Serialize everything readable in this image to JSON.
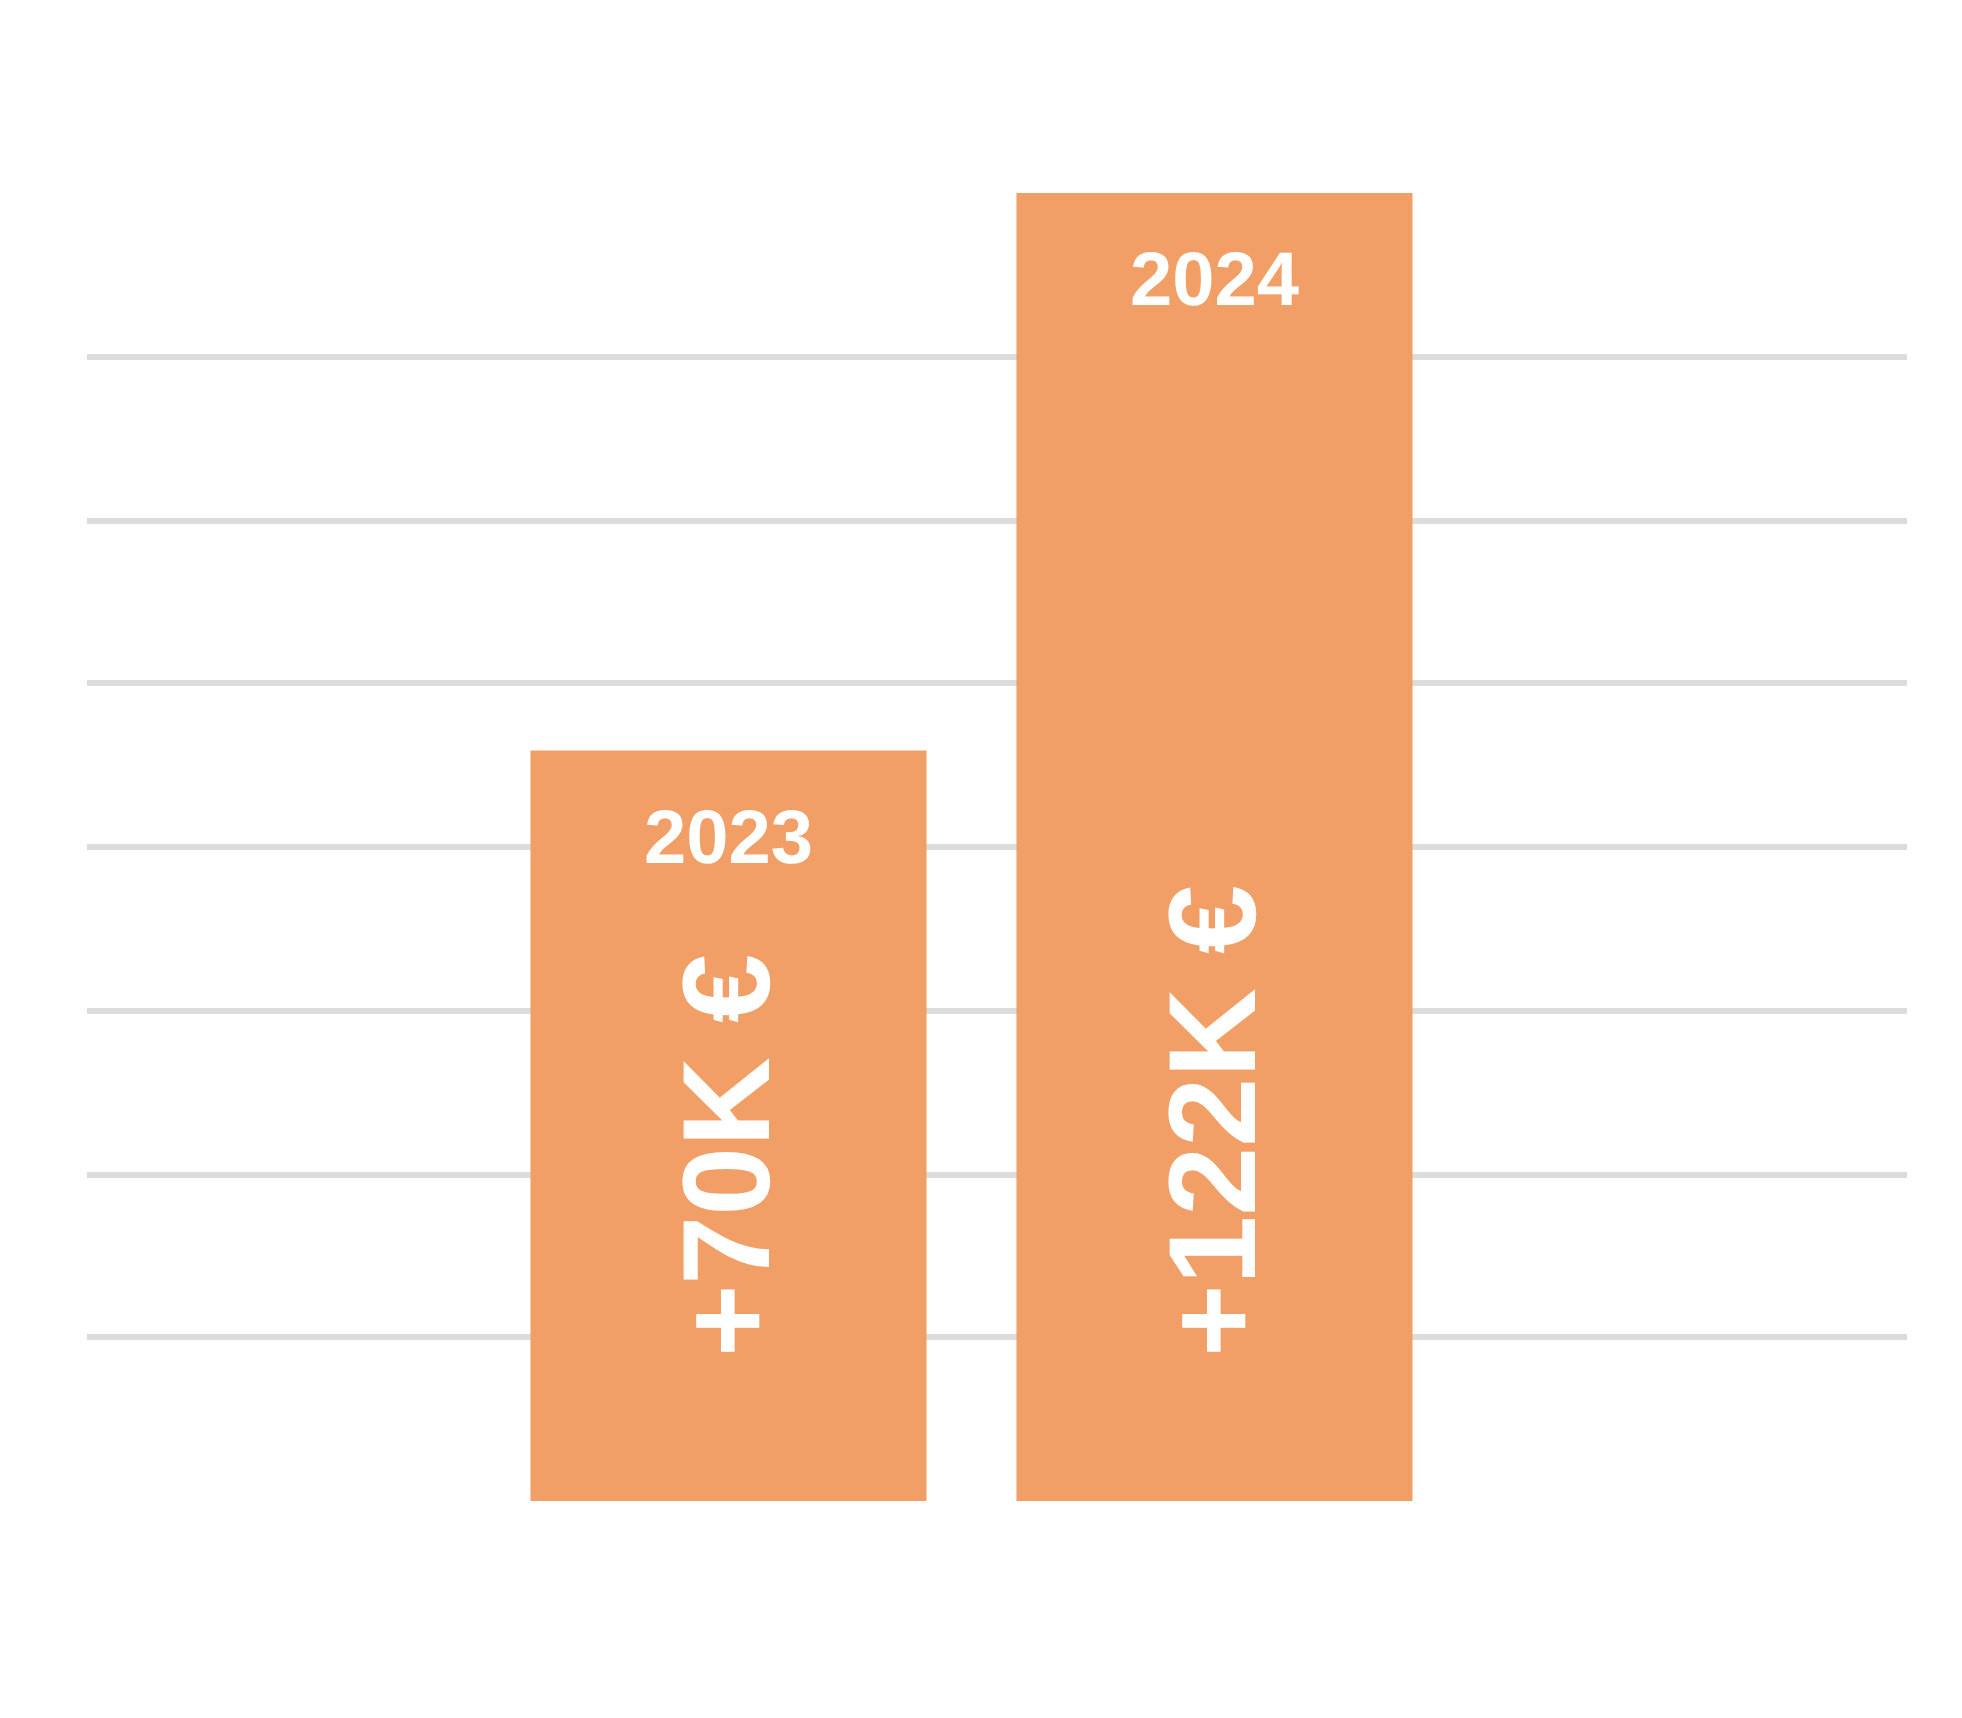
{
  "chart_data": {
    "type": "bar",
    "categories": [
      "2023",
      "2024"
    ],
    "values": [
      70,
      122
    ],
    "value_labels": [
      "+70K €",
      "+122K €"
    ],
    "color": "#f19f66",
    "grid": "y"
  }
}
